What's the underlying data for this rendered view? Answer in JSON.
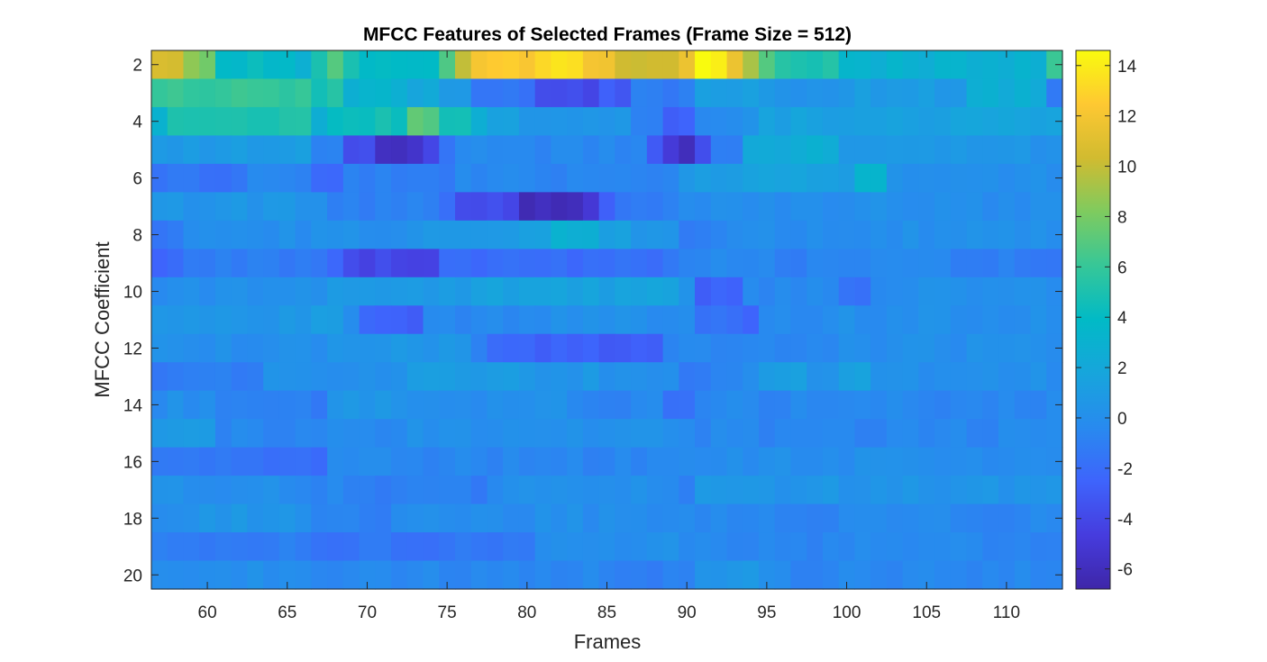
{
  "chart_data": {
    "type": "heatmap",
    "title": "MFCC Features of Selected Frames (Frame Size = 512)",
    "xlabel": "Frames",
    "ylabel": "MFCC Coefficient",
    "x_range": [
      57,
      113
    ],
    "y_range": [
      2,
      20
    ],
    "xlim": [
      56.5,
      113.5
    ],
    "ylim": [
      1.5,
      20.5
    ],
    "y_reversed": true,
    "x_ticks": [
      60,
      65,
      70,
      75,
      80,
      85,
      90,
      95,
      100,
      105,
      110
    ],
    "x_tick_labels": [
      "60",
      "65",
      "70",
      "75",
      "80",
      "85",
      "90",
      "95",
      "100",
      "105",
      "110"
    ],
    "y_ticks": [
      2,
      4,
      6,
      8,
      10,
      12,
      14,
      16,
      18,
      20
    ],
    "y_tick_labels": [
      "2",
      "4",
      "6",
      "8",
      "10",
      "12",
      "14",
      "16",
      "18",
      "20"
    ],
    "colormap": "parula",
    "clim": [
      -6.8,
      14.6
    ],
    "colorbar_ticks": [
      14,
      12,
      10,
      8,
      6,
      4,
      2,
      0,
      -2,
      -4,
      -6
    ],
    "colorbar_tick_labels": [
      "14",
      "12",
      "10",
      "8",
      "6",
      "4",
      "2",
      "0",
      "-2",
      "-4",
      "-6"
    ],
    "colorbar_placement": "right",
    "rows": [
      {
        "coef": 2,
        "base": 2.5,
        "segments": [
          [
            57,
            58,
            10.5
          ],
          [
            59,
            59,
            9
          ],
          [
            60,
            60,
            8
          ],
          [
            61,
            65,
            4
          ],
          [
            66,
            66,
            2.5
          ],
          [
            67,
            67,
            5
          ],
          [
            68,
            68,
            7
          ],
          [
            69,
            69,
            5
          ],
          [
            70,
            74,
            4
          ],
          [
            75,
            75,
            7
          ],
          [
            76,
            76,
            10
          ],
          [
            77,
            80,
            12.5
          ],
          [
            81,
            83,
            13.5
          ],
          [
            84,
            85,
            12
          ],
          [
            86,
            89,
            10.5
          ],
          [
            90,
            90,
            12
          ],
          [
            91,
            92,
            14.5
          ],
          [
            93,
            93,
            12
          ],
          [
            94,
            94,
            9
          ],
          [
            95,
            95,
            7
          ],
          [
            96,
            99,
            5
          ],
          [
            100,
            113,
            3
          ],
          [
            113,
            113,
            6
          ]
        ]
      },
      {
        "coef": 3,
        "base": 0,
        "segments": [
          [
            57,
            66,
            6
          ],
          [
            67,
            67,
            4.5
          ],
          [
            68,
            68,
            5
          ],
          [
            69,
            72,
            3
          ],
          [
            73,
            74,
            2
          ],
          [
            75,
            76,
            1
          ],
          [
            77,
            80,
            -1.5
          ],
          [
            81,
            84,
            -4
          ],
          [
            85,
            86,
            -3
          ],
          [
            87,
            90,
            -1
          ],
          [
            91,
            94,
            1
          ],
          [
            95,
            99,
            0.5
          ],
          [
            100,
            107,
            1
          ],
          [
            108,
            112,
            2.5
          ],
          [
            113,
            113,
            -1
          ]
        ]
      },
      {
        "coef": 4,
        "base": 0.5,
        "segments": [
          [
            57,
            57,
            3
          ],
          [
            58,
            66,
            5
          ],
          [
            67,
            67,
            3
          ],
          [
            68,
            72,
            4.5
          ],
          [
            73,
            74,
            7
          ],
          [
            75,
            76,
            5
          ],
          [
            77,
            77,
            3
          ],
          [
            78,
            79,
            1.5
          ],
          [
            80,
            86,
            0.5
          ],
          [
            87,
            88,
            -1
          ],
          [
            89,
            90,
            -2.5
          ],
          [
            91,
            94,
            0
          ],
          [
            95,
            113,
            1.5
          ]
        ]
      },
      {
        "coef": 5,
        "base": -0.5,
        "segments": [
          [
            57,
            66,
            1
          ],
          [
            67,
            68,
            -1
          ],
          [
            69,
            70,
            -4
          ],
          [
            71,
            73,
            -5.5
          ],
          [
            74,
            74,
            -4
          ],
          [
            75,
            75,
            -2
          ],
          [
            76,
            87,
            -0.5
          ],
          [
            88,
            88,
            -3
          ],
          [
            89,
            89,
            -5
          ],
          [
            90,
            90,
            -6.5
          ],
          [
            91,
            91,
            -4
          ],
          [
            92,
            93,
            -1
          ],
          [
            94,
            99,
            2.5
          ],
          [
            100,
            113,
            0.5
          ]
        ]
      },
      {
        "coef": 6,
        "base": 0,
        "segments": [
          [
            57,
            62,
            -1.5
          ],
          [
            63,
            66,
            -0.5
          ],
          [
            67,
            68,
            -2
          ],
          [
            69,
            75,
            -1
          ],
          [
            76,
            89,
            -0.5
          ],
          [
            90,
            93,
            1
          ],
          [
            94,
            100,
            1.5
          ],
          [
            101,
            102,
            3
          ],
          [
            103,
            113,
            0
          ]
        ]
      },
      {
        "coef": 7,
        "base": 0,
        "segments": [
          [
            57,
            67,
            0.5
          ],
          [
            68,
            74,
            -1
          ],
          [
            75,
            75,
            -2
          ],
          [
            76,
            78,
            -3.5
          ],
          [
            79,
            79,
            -4.5
          ],
          [
            80,
            83,
            -6
          ],
          [
            84,
            84,
            -5
          ],
          [
            85,
            85,
            -3
          ],
          [
            86,
            89,
            -1
          ],
          [
            90,
            113,
            0
          ]
        ]
      },
      {
        "coef": 8,
        "base": 0,
        "segments": [
          [
            57,
            58,
            -1.5
          ],
          [
            59,
            73,
            0
          ],
          [
            74,
            79,
            1
          ],
          [
            80,
            81,
            1.5
          ],
          [
            82,
            84,
            3
          ],
          [
            85,
            86,
            1.5
          ],
          [
            87,
            89,
            0.5
          ],
          [
            90,
            92,
            -1
          ],
          [
            93,
            113,
            0
          ]
        ]
      },
      {
        "coef": 9,
        "base": -0.5,
        "segments": [
          [
            57,
            58,
            -2.5
          ],
          [
            59,
            67,
            -1
          ],
          [
            68,
            68,
            -2
          ],
          [
            69,
            69,
            -3.5
          ],
          [
            70,
            74,
            -4
          ],
          [
            75,
            82,
            -2
          ],
          [
            83,
            88,
            -2
          ],
          [
            89,
            90,
            -1
          ],
          [
            91,
            95,
            -0.5
          ],
          [
            96,
            97,
            -1.5
          ],
          [
            98,
            106,
            -0.5
          ],
          [
            107,
            113,
            -1
          ]
        ]
      },
      {
        "coef": 10,
        "base": 0,
        "segments": [
          [
            57,
            67,
            0
          ],
          [
            68,
            76,
            1
          ],
          [
            77,
            81,
            1.5
          ],
          [
            82,
            89,
            1.5
          ],
          [
            90,
            90,
            0
          ],
          [
            91,
            93,
            -2.5
          ],
          [
            94,
            99,
            -0.5
          ],
          [
            100,
            101,
            -1.5
          ],
          [
            102,
            113,
            0
          ]
        ]
      },
      {
        "coef": 11,
        "base": 0,
        "segments": [
          [
            57,
            66,
            0.5
          ],
          [
            67,
            68,
            1
          ],
          [
            69,
            69,
            -0.5
          ],
          [
            70,
            73,
            -2.5
          ],
          [
            74,
            79,
            -0.5
          ],
          [
            80,
            90,
            0
          ],
          [
            91,
            93,
            -1.5
          ],
          [
            94,
            94,
            -2.5
          ],
          [
            95,
            99,
            -0.5
          ],
          [
            100,
            113,
            0
          ]
        ]
      },
      {
        "coef": 12,
        "base": 0,
        "segments": [
          [
            57,
            67,
            0
          ],
          [
            68,
            76,
            0.5
          ],
          [
            77,
            77,
            -1
          ],
          [
            78,
            84,
            -2.5
          ],
          [
            85,
            88,
            -3
          ],
          [
            89,
            89,
            -1
          ],
          [
            90,
            94,
            -0.5
          ],
          [
            95,
            99,
            -0.5
          ],
          [
            100,
            113,
            0
          ]
        ]
      },
      {
        "coef": 13,
        "base": 0,
        "segments": [
          [
            57,
            63,
            -1
          ],
          [
            64,
            72,
            0
          ],
          [
            73,
            80,
            1
          ],
          [
            81,
            84,
            0.5
          ],
          [
            85,
            89,
            0
          ],
          [
            90,
            91,
            -1.5
          ],
          [
            92,
            94,
            -0.5
          ],
          [
            95,
            97,
            1
          ],
          [
            98,
            99,
            0
          ],
          [
            100,
            101,
            1.5
          ],
          [
            102,
            113,
            0
          ]
        ]
      },
      {
        "coef": 14,
        "base": 0,
        "segments": [
          [
            57,
            60,
            0
          ],
          [
            61,
            67,
            -1
          ],
          [
            68,
            72,
            0.5
          ],
          [
            73,
            82,
            0
          ],
          [
            83,
            88,
            -0.5
          ],
          [
            89,
            90,
            -2
          ],
          [
            91,
            113,
            -0.5
          ]
        ]
      },
      {
        "coef": 15,
        "base": -0.5,
        "segments": [
          [
            57,
            58,
            0.5
          ],
          [
            59,
            60,
            1
          ],
          [
            61,
            71,
            -0.5
          ],
          [
            72,
            90,
            0
          ],
          [
            91,
            113,
            -0.5
          ]
        ]
      },
      {
        "coef": 16,
        "base": -0.5,
        "segments": [
          [
            57,
            63,
            -1.5
          ],
          [
            64,
            67,
            -2
          ],
          [
            68,
            91,
            -0.5
          ],
          [
            92,
            113,
            0
          ]
        ]
      },
      {
        "coef": 17,
        "base": 0,
        "segments": [
          [
            57,
            64,
            0
          ],
          [
            65,
            69,
            -0.5
          ],
          [
            70,
            77,
            -1
          ],
          [
            78,
            89,
            0
          ],
          [
            90,
            90,
            -1
          ],
          [
            91,
            113,
            0.5
          ]
        ]
      },
      {
        "coef": 18,
        "base": 0,
        "segments": [
          [
            57,
            58,
            -0.5
          ],
          [
            59,
            66,
            0.5
          ],
          [
            67,
            71,
            -1
          ],
          [
            72,
            90,
            0
          ],
          [
            91,
            113,
            -0.5
          ]
        ]
      },
      {
        "coef": 19,
        "base": -0.5,
        "segments": [
          [
            57,
            66,
            -1
          ],
          [
            67,
            80,
            -1.5
          ],
          [
            81,
            90,
            0
          ],
          [
            91,
            113,
            -0.5
          ]
        ]
      },
      {
        "coef": 20,
        "base": -0.5,
        "segments": [
          [
            57,
            66,
            0
          ],
          [
            67,
            84,
            -0.5
          ],
          [
            85,
            90,
            -1
          ],
          [
            91,
            95,
            0.5
          ],
          [
            96,
            113,
            -0.5
          ]
        ]
      }
    ]
  }
}
